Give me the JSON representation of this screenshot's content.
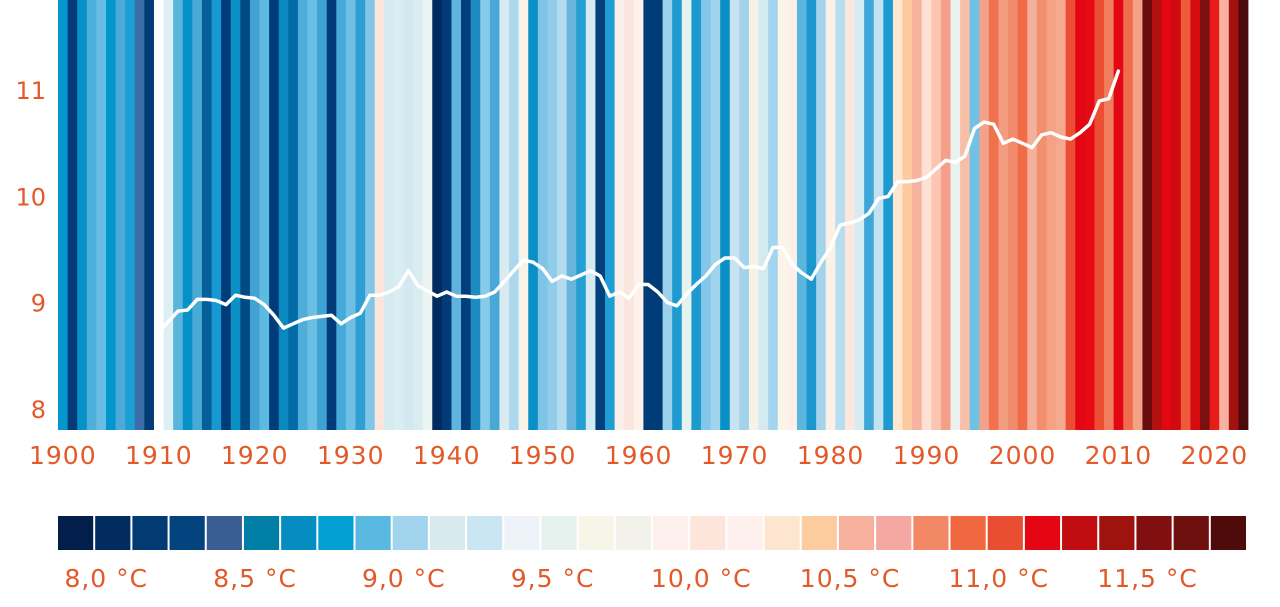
{
  "chart_data": {
    "type": "warming-stripes-line",
    "title": "",
    "xlabel": "",
    "ylabel": "",
    "x_range": [
      1900,
      2023
    ],
    "y_range": [
      7.8,
      11.85
    ],
    "y_ticks": [
      "8",
      "9",
      "10",
      "11"
    ],
    "x_ticks": [
      "1900",
      "1910",
      "1920",
      "1930",
      "1940",
      "1950",
      "1960",
      "1970",
      "1980",
      "1990",
      "2000",
      "2010",
      "2020"
    ],
    "line_color": "#ffffff",
    "line_series": {
      "start_year": 1910,
      "values": [
        8.72,
        8.82,
        8.92,
        8.93,
        9.03,
        9.03,
        9.02,
        8.98,
        9.07,
        9.05,
        9.04,
        8.98,
        8.88,
        8.76,
        8.8,
        8.84,
        8.86,
        8.87,
        8.88,
        8.8,
        8.86,
        8.9,
        9.07,
        9.07,
        9.1,
        9.15,
        9.3,
        9.16,
        9.11,
        9.06,
        9.1,
        9.06,
        9.06,
        9.05,
        9.06,
        9.1,
        9.2,
        9.3,
        9.4,
        9.38,
        9.32,
        9.2,
        9.25,
        9.22,
        9.26,
        9.3,
        9.25,
        9.06,
        9.1,
        9.04,
        9.17,
        9.17,
        9.1,
        9.0,
        8.97,
        9.08,
        9.17,
        9.25,
        9.36,
        9.42,
        9.42,
        9.33,
        9.34,
        9.32,
        9.52,
        9.52,
        9.36,
        9.28,
        9.22,
        9.38,
        9.52,
        9.73,
        9.75,
        9.78,
        9.84,
        9.98,
        10.0,
        10.14,
        10.14,
        10.15,
        10.18,
        10.26,
        10.34,
        10.32,
        10.38,
        10.64,
        10.7,
        10.68,
        10.5,
        10.54,
        10.5,
        10.46,
        10.58,
        10.6,
        10.56,
        10.54,
        10.6,
        10.68,
        10.9,
        10.92,
        11.18
      ]
    },
    "stripes": {
      "start_year": 1900,
      "colors": [
        "#0496cc",
        "#023c78",
        "#0791c9",
        "#4eafdb",
        "#69bde2",
        "#0396cd",
        "#4da9d8",
        "#1aa0d4",
        "#3b6ea9",
        "#023c78",
        "#ffffff",
        "#deeff3",
        "#5ab5de",
        "#0891c8",
        "#4ba9d6",
        "#045e98",
        "#1599d0",
        "#023c78",
        "#0a90c5",
        "#014a84",
        "#42a3d3",
        "#5dbbe1",
        "#023c78",
        "#0a88bf",
        "#036aa8",
        "#4fadda",
        "#6bbfe3",
        "#3ea3d2",
        "#023c78",
        "#46aad8",
        "#6fc0e4",
        "#2f9ed2",
        "#7fc6e7",
        "#fbe4dc",
        "#d6ebef",
        "#daedf2",
        "#d4e9ef",
        "#d8ecf1",
        "#ecf4f2",
        "#012b5e",
        "#023c78",
        "#5fb3dd",
        "#023f7a",
        "#1e8ac2",
        "#87cbea",
        "#4aa8d6",
        "#d9ebf0",
        "#abd8ee",
        "#f7f4e7",
        "#0b8fc6",
        "#7ec4e6",
        "#91cde9",
        "#b3dcef",
        "#69b4dc",
        "#26a0d4",
        "#d3ebf0",
        "#03407c",
        "#1f9ed4",
        "#fceeea",
        "#fae6de",
        "#fdf1ea",
        "#023c78",
        "#023c78",
        "#9bd0ec",
        "#1e9ad1",
        "#e5f3ee",
        "#1d9bd1",
        "#83c6e7",
        "#a0d3ec",
        "#0990c6",
        "#c7e3f1",
        "#a2d2ec",
        "#f7f2e6",
        "#d2eaf0",
        "#a4d5ee",
        "#fbf4e9",
        "#fef0e9",
        "#5ab5df",
        "#1b97cd",
        "#a4d3ec",
        "#fdf0e6",
        "#b7def0",
        "#fce7de",
        "#d5ecf2",
        "#3ea7d8",
        "#c2e2f1",
        "#1c9bd1",
        "#fde7d1",
        "#fcca9e",
        "#f6b39f",
        "#fde1d4",
        "#fac6b2",
        "#f59e88",
        "#eaf2ef",
        "#f7bfa5",
        "#6fc1e6",
        "#f2a28b",
        "#f0714d",
        "#f29c80",
        "#f08b6d",
        "#f06b46",
        "#f4b09a",
        "#f38f6c",
        "#f4a184",
        "#f5a98e",
        "#ec4e33",
        "#e30613",
        "#e60a12",
        "#ec4e34",
        "#f07e5e",
        "#e30613",
        "#ef6c4c",
        "#f4a287",
        "#6a0c0d",
        "#b1110f",
        "#e40613",
        "#d00b10",
        "#ef5b3a",
        "#d50b11",
        "#7a1010",
        "#e81d1a",
        "#f6b1a3",
        "#a3120f",
        "#4c0a0a"
      ]
    },
    "legend": {
      "colors": [
        "#011f4a",
        "#022c60",
        "#023a72",
        "#03447e",
        "#3a5d94",
        "#017ea5",
        "#058dc2",
        "#03a1d3",
        "#5ab9e0",
        "#a3d4ed",
        "#d8eaed",
        "#cae6f2",
        "#edf3f8",
        "#e4f1ed",
        "#f6f5e7",
        "#f2f1ea",
        "#fdefec",
        "#fde5db",
        "#fef0ec",
        "#fde5d0",
        "#fccb9e",
        "#f7b09e",
        "#f5a8a1",
        "#f38866",
        "#ef683f",
        "#ea4e32",
        "#e40612",
        "#c10d12",
        "#9f130f",
        "#820f0f",
        "#6d100e",
        "#4f0a0a"
      ],
      "labels": [
        "8,0 °C",
        "8,5 °C",
        "9,0 °C",
        "9,5 °C",
        "10,0 °C",
        "10,5 °C",
        "11,0 °C",
        "11,5 °C"
      ]
    }
  }
}
